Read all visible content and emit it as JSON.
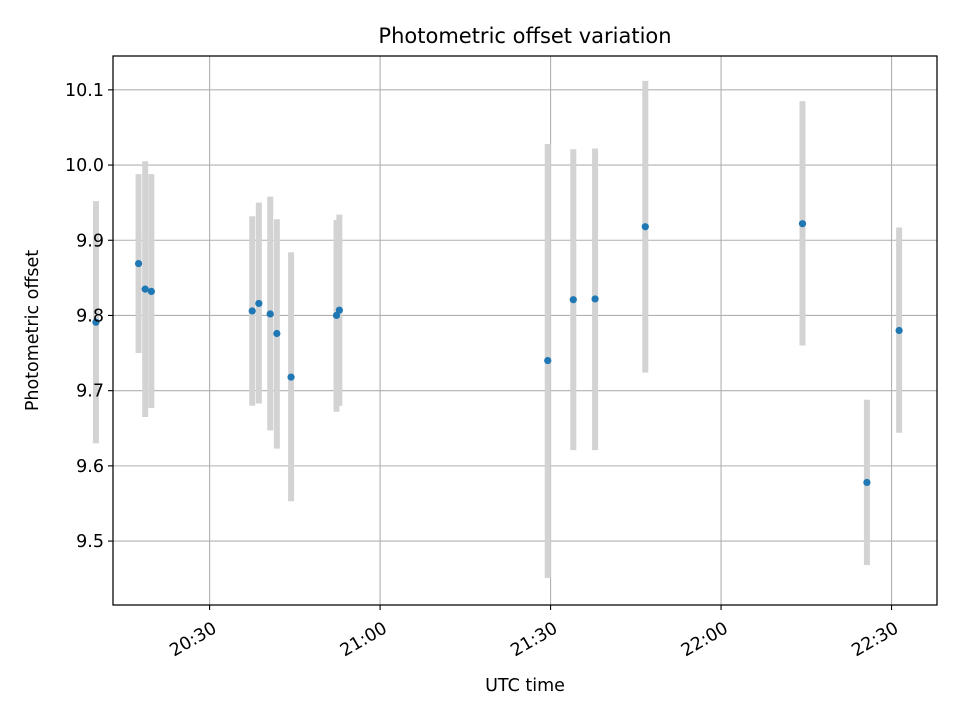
{
  "chart_data": {
    "type": "scatter",
    "title": "Photometric offset variation",
    "xlabel": "UTC time",
    "ylabel": "Photometric offset",
    "grid": true,
    "colors": {
      "points": "#1f77b4",
      "errorbars": "#d3d3d3",
      "grid": "#b0b0b0",
      "axes": "#000000"
    },
    "xlim": [
      "20:13",
      "22:38"
    ],
    "ylim": [
      9.415,
      10.145
    ],
    "xticks": [
      "20:30",
      "21:00",
      "21:30",
      "22:00",
      "22:30"
    ],
    "yticks": [
      9.5,
      9.6,
      9.7,
      9.8,
      9.9,
      10.0,
      10.1
    ],
    "ytick_labels": [
      "9.5",
      "9.6",
      "9.7",
      "9.8",
      "9.9",
      "10.0",
      "10.1"
    ],
    "series": [
      {
        "points": [
          {
            "x": "20:10:00",
            "y": 9.791,
            "ylo": 9.63,
            "yhi": 9.952
          },
          {
            "x": "20:17:30",
            "y": 9.869,
            "ylo": 9.75,
            "yhi": 9.988
          },
          {
            "x": "20:18:40",
            "y": 9.835,
            "ylo": 9.665,
            "yhi": 10.005
          },
          {
            "x": "20:19:45",
            "y": 9.832,
            "ylo": 9.677,
            "yhi": 9.988
          },
          {
            "x": "20:37:30",
            "y": 9.806,
            "ylo": 9.68,
            "yhi": 9.932
          },
          {
            "x": "20:38:40",
            "y": 9.816,
            "ylo": 9.683,
            "yhi": 9.95
          },
          {
            "x": "20:40:40",
            "y": 9.802,
            "ylo": 9.647,
            "yhi": 9.958
          },
          {
            "x": "20:41:50",
            "y": 9.776,
            "ylo": 9.623,
            "yhi": 9.928
          },
          {
            "x": "20:44:20",
            "y": 9.718,
            "ylo": 9.553,
            "yhi": 9.884
          },
          {
            "x": "20:52:20",
            "y": 9.8,
            "ylo": 9.672,
            "yhi": 9.927
          },
          {
            "x": "20:52:50",
            "y": 9.807,
            "ylo": 9.68,
            "yhi": 9.934
          },
          {
            "x": "21:29:30",
            "y": 9.74,
            "ylo": 9.451,
            "yhi": 10.028
          },
          {
            "x": "21:34:00",
            "y": 9.821,
            "ylo": 9.621,
            "yhi": 10.021
          },
          {
            "x": "21:37:50",
            "y": 9.822,
            "ylo": 9.621,
            "yhi": 10.022
          },
          {
            "x": "21:46:40",
            "y": 9.918,
            "ylo": 9.724,
            "yhi": 10.112
          },
          {
            "x": "22:14:20",
            "y": 9.922,
            "ylo": 9.76,
            "yhi": 10.085
          },
          {
            "x": "22:25:40",
            "y": 9.578,
            "ylo": 9.468,
            "yhi": 9.688
          },
          {
            "x": "22:31:20",
            "y": 9.78,
            "ylo": 9.644,
            "yhi": 9.917
          }
        ]
      }
    ]
  }
}
